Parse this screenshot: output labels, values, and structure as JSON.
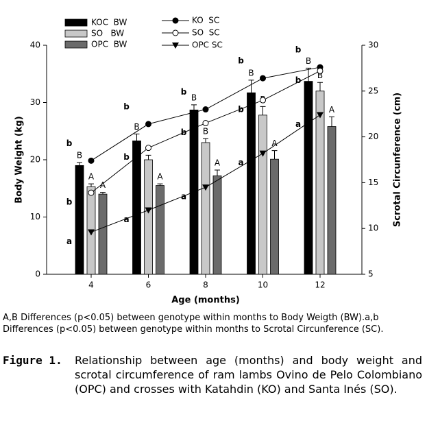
{
  "chart_data": {
    "type": "bar",
    "y_label": "Body Weight (kg)",
    "y2_label": "Scrotal Circunference (cm)",
    "x_label": "Age (months)",
    "categories": [
      "4",
      "6",
      "8",
      "10",
      "12"
    ],
    "ylim": [
      0,
      40
    ],
    "yticks": [
      0,
      10,
      20,
      30,
      40
    ],
    "y2lim": [
      5,
      30
    ],
    "y2ticks": [
      5,
      10,
      15,
      20,
      25,
      30
    ],
    "series": [
      {
        "name": "KOC  BW",
        "type": "bar",
        "color": "#000000",
        "values": [
          19,
          23.3,
          28.7,
          31.7,
          33.7
        ],
        "errors": [
          0.5,
          1.2,
          0.9,
          2.2,
          2.3
        ],
        "letters": [
          "B",
          "B",
          "B",
          "B",
          "B"
        ]
      },
      {
        "name": "SO   BW",
        "type": "bar",
        "color": "#c8c8c8",
        "values": [
          15.3,
          20,
          23,
          27.8,
          32
        ],
        "errors": [
          0.5,
          0.8,
          0.7,
          1.5,
          1.5
        ],
        "letters": [
          "A",
          null,
          "B",
          "B",
          "B"
        ]
      },
      {
        "name": "OPC  BW",
        "type": "bar",
        "color": "#6b6b6b",
        "values": [
          14,
          15.5,
          17.2,
          20.1,
          25.8
        ],
        "errors": [
          0.3,
          0.3,
          1.0,
          1.5,
          1.7
        ],
        "letters": [
          "A",
          "A",
          "A",
          "A",
          "A"
        ]
      },
      {
        "name": "KO  SC",
        "type": "line",
        "axis": "y2",
        "marker": "circle",
        "color": "#000000",
        "values": [
          17.4,
          21.4,
          23.0,
          26.4,
          27.6
        ],
        "letters": [
          "b",
          "b",
          "b",
          "b",
          "b"
        ]
      },
      {
        "name": "SO  SC",
        "type": "line",
        "axis": "y2",
        "marker": "circle-open",
        "color": "#000000",
        "values": [
          13.9,
          18.8,
          21.5,
          24.0,
          27.2
        ],
        "letters": [
          "b",
          "b",
          "b",
          "b",
          "b"
        ]
      },
      {
        "name": "OPC SC",
        "type": "line",
        "axis": "y2",
        "marker": "triangle-down",
        "color": "#000000",
        "values": [
          9.6,
          12.0,
          14.5,
          18.2,
          22.4
        ],
        "letters": [
          "a",
          "a",
          "a",
          "a",
          "a"
        ]
      }
    ]
  },
  "footnote": "A,B Differences (p<0.05) between genotype within months to Body Weigth (BW).a,b Differences (p<0.05) between genotype within months to Scrotal Circunference (SC).",
  "caption_label": "Figure 1.",
  "caption_text": "Relationship between age (months) and body weight and scrotal circumference of ram lambs Ovino de Pelo Colombiano (OPC) and crosses with Katahdin (KO) and Santa Inés (SO)."
}
